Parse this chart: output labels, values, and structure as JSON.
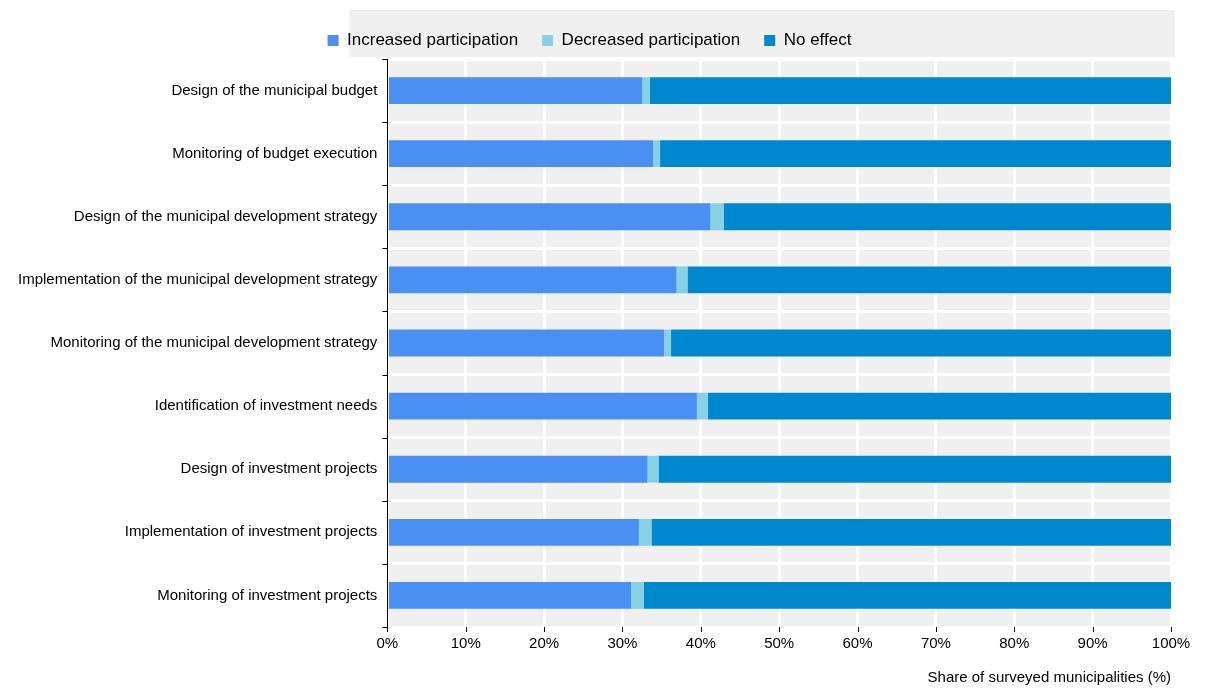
{
  "chart_data": {
    "type": "bar",
    "orientation": "horizontal",
    "stacked": true,
    "xlabel": "Share of surveyed municipalities (%)",
    "categories": [
      "Design of the municipal budget",
      "Monitoring of budget execution",
      "Design of the municipal development strategy",
      "Implementation of the municipal development strategy",
      "Monitoring of the municipal development strategy",
      "Identification of investment needs",
      "Design of investment projects",
      "Implementation of investment projects",
      "Monitoring of investment projects"
    ],
    "series": [
      {
        "name": "Increased participation",
        "color": "#4a8ff2",
        "values": [
          32.5,
          33.9,
          41.2,
          36.9,
          35.3,
          39.5,
          33.2,
          32.1,
          31.1
        ]
      },
      {
        "name": "Decreased participation",
        "color": "#86d2e4",
        "values": [
          1.0,
          0.9,
          1.7,
          1.4,
          0.9,
          1.4,
          1.4,
          1.6,
          1.6
        ]
      },
      {
        "name": "No effect",
        "color": "#0088cf",
        "values": [
          66.5,
          65.2,
          57.1,
          61.7,
          63.8,
          59.1,
          65.4,
          66.3,
          67.3
        ]
      }
    ],
    "xlim": [
      0,
      100
    ],
    "xticks": [
      {
        "value": 0,
        "label": "0%"
      },
      {
        "value": 10,
        "label": "10%"
      },
      {
        "value": 20,
        "label": "20%"
      },
      {
        "value": 30,
        "label": "30%"
      },
      {
        "value": 40,
        "label": "40%"
      },
      {
        "value": 50,
        "label": "50%"
      },
      {
        "value": 60,
        "label": "60%"
      },
      {
        "value": 70,
        "label": "70%"
      },
      {
        "value": 80,
        "label": "80%"
      },
      {
        "value": 90,
        "label": "90%"
      },
      {
        "value": 100,
        "label": "100%"
      }
    ],
    "grid": true,
    "legend": "top"
  }
}
